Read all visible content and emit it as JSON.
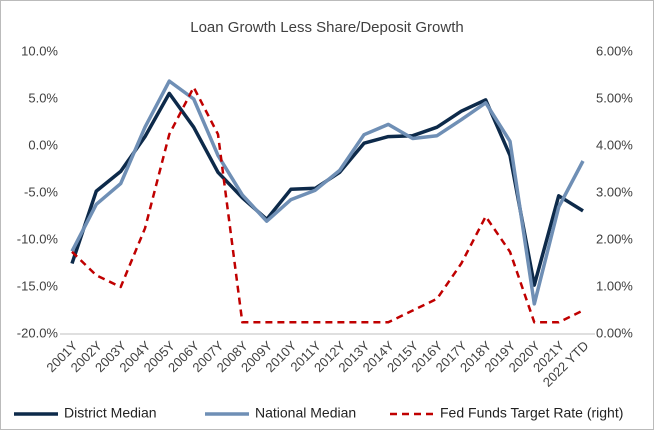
{
  "chart_data": {
    "type": "line",
    "title": "Loan Growth Less Share/Deposit Growth",
    "categories": [
      "2001Y",
      "2002Y",
      "2003Y",
      "2004Y",
      "2005Y",
      "2006Y",
      "2007Y",
      "2008Y",
      "2009Y",
      "2010Y",
      "2011Y",
      "2012Y",
      "2013Y",
      "2014Y",
      "2015Y",
      "2016Y",
      "2017Y",
      "2018Y",
      "2019Y",
      "2020Y",
      "2021Y",
      "2022 YTD"
    ],
    "series": [
      {
        "name": "District Median",
        "color": "#0d2a4a",
        "axis": "y",
        "dashed": false,
        "values": [
          -12.5,
          -4.8,
          -2.7,
          1.0,
          5.6,
          2.0,
          -2.8,
          -5.5,
          -7.8,
          -4.6,
          -4.5,
          -2.8,
          0.3,
          1.0,
          1.1,
          2.0,
          3.7,
          4.9,
          -1.0,
          -14.8,
          -5.3,
          -6.9
        ]
      },
      {
        "name": "National Median",
        "color": "#6f8fb5",
        "axis": "y",
        "dashed": false,
        "values": [
          -11.2,
          -6.2,
          -4.0,
          2.0,
          6.9,
          5.0,
          -1.0,
          -5.2,
          -8.0,
          -5.7,
          -4.7,
          -2.6,
          1.2,
          2.3,
          0.8,
          1.1,
          2.8,
          4.6,
          0.5,
          -16.8,
          -6.5,
          -1.6
        ]
      },
      {
        "name": "Fed Funds Target Rate (right)",
        "color": "#c00000",
        "axis": "y2",
        "dashed": true,
        "values": [
          1.75,
          1.25,
          1.0,
          2.25,
          4.25,
          5.25,
          4.25,
          0.25,
          0.25,
          0.25,
          0.25,
          0.25,
          0.25,
          0.25,
          0.5,
          0.75,
          1.5,
          2.5,
          1.75,
          0.25,
          0.25,
          0.5
        ]
      }
    ],
    "ylim": [
      -20,
      10
    ],
    "yticks": [
      {
        "value": -20,
        "label": "-20.0%"
      },
      {
        "value": -15,
        "label": "-15.0%"
      },
      {
        "value": -10,
        "label": "-10.0%"
      },
      {
        "value": -5,
        "label": "-5.0%"
      },
      {
        "value": 0,
        "label": "0.0%"
      },
      {
        "value": 5,
        "label": "5.0%"
      },
      {
        "value": 10,
        "label": "10.0%"
      }
    ],
    "y2lim": [
      0,
      6
    ],
    "y2ticks": [
      {
        "value": 0,
        "label": "0.00%"
      },
      {
        "value": 1,
        "label": "1.00%"
      },
      {
        "value": 2,
        "label": "2.00%"
      },
      {
        "value": 3,
        "label": "3.00%"
      },
      {
        "value": 4,
        "label": "4.00%"
      },
      {
        "value": 5,
        "label": "5.00%"
      },
      {
        "value": 6,
        "label": "6.00%"
      }
    ],
    "grid": false,
    "legend": "bottom"
  }
}
